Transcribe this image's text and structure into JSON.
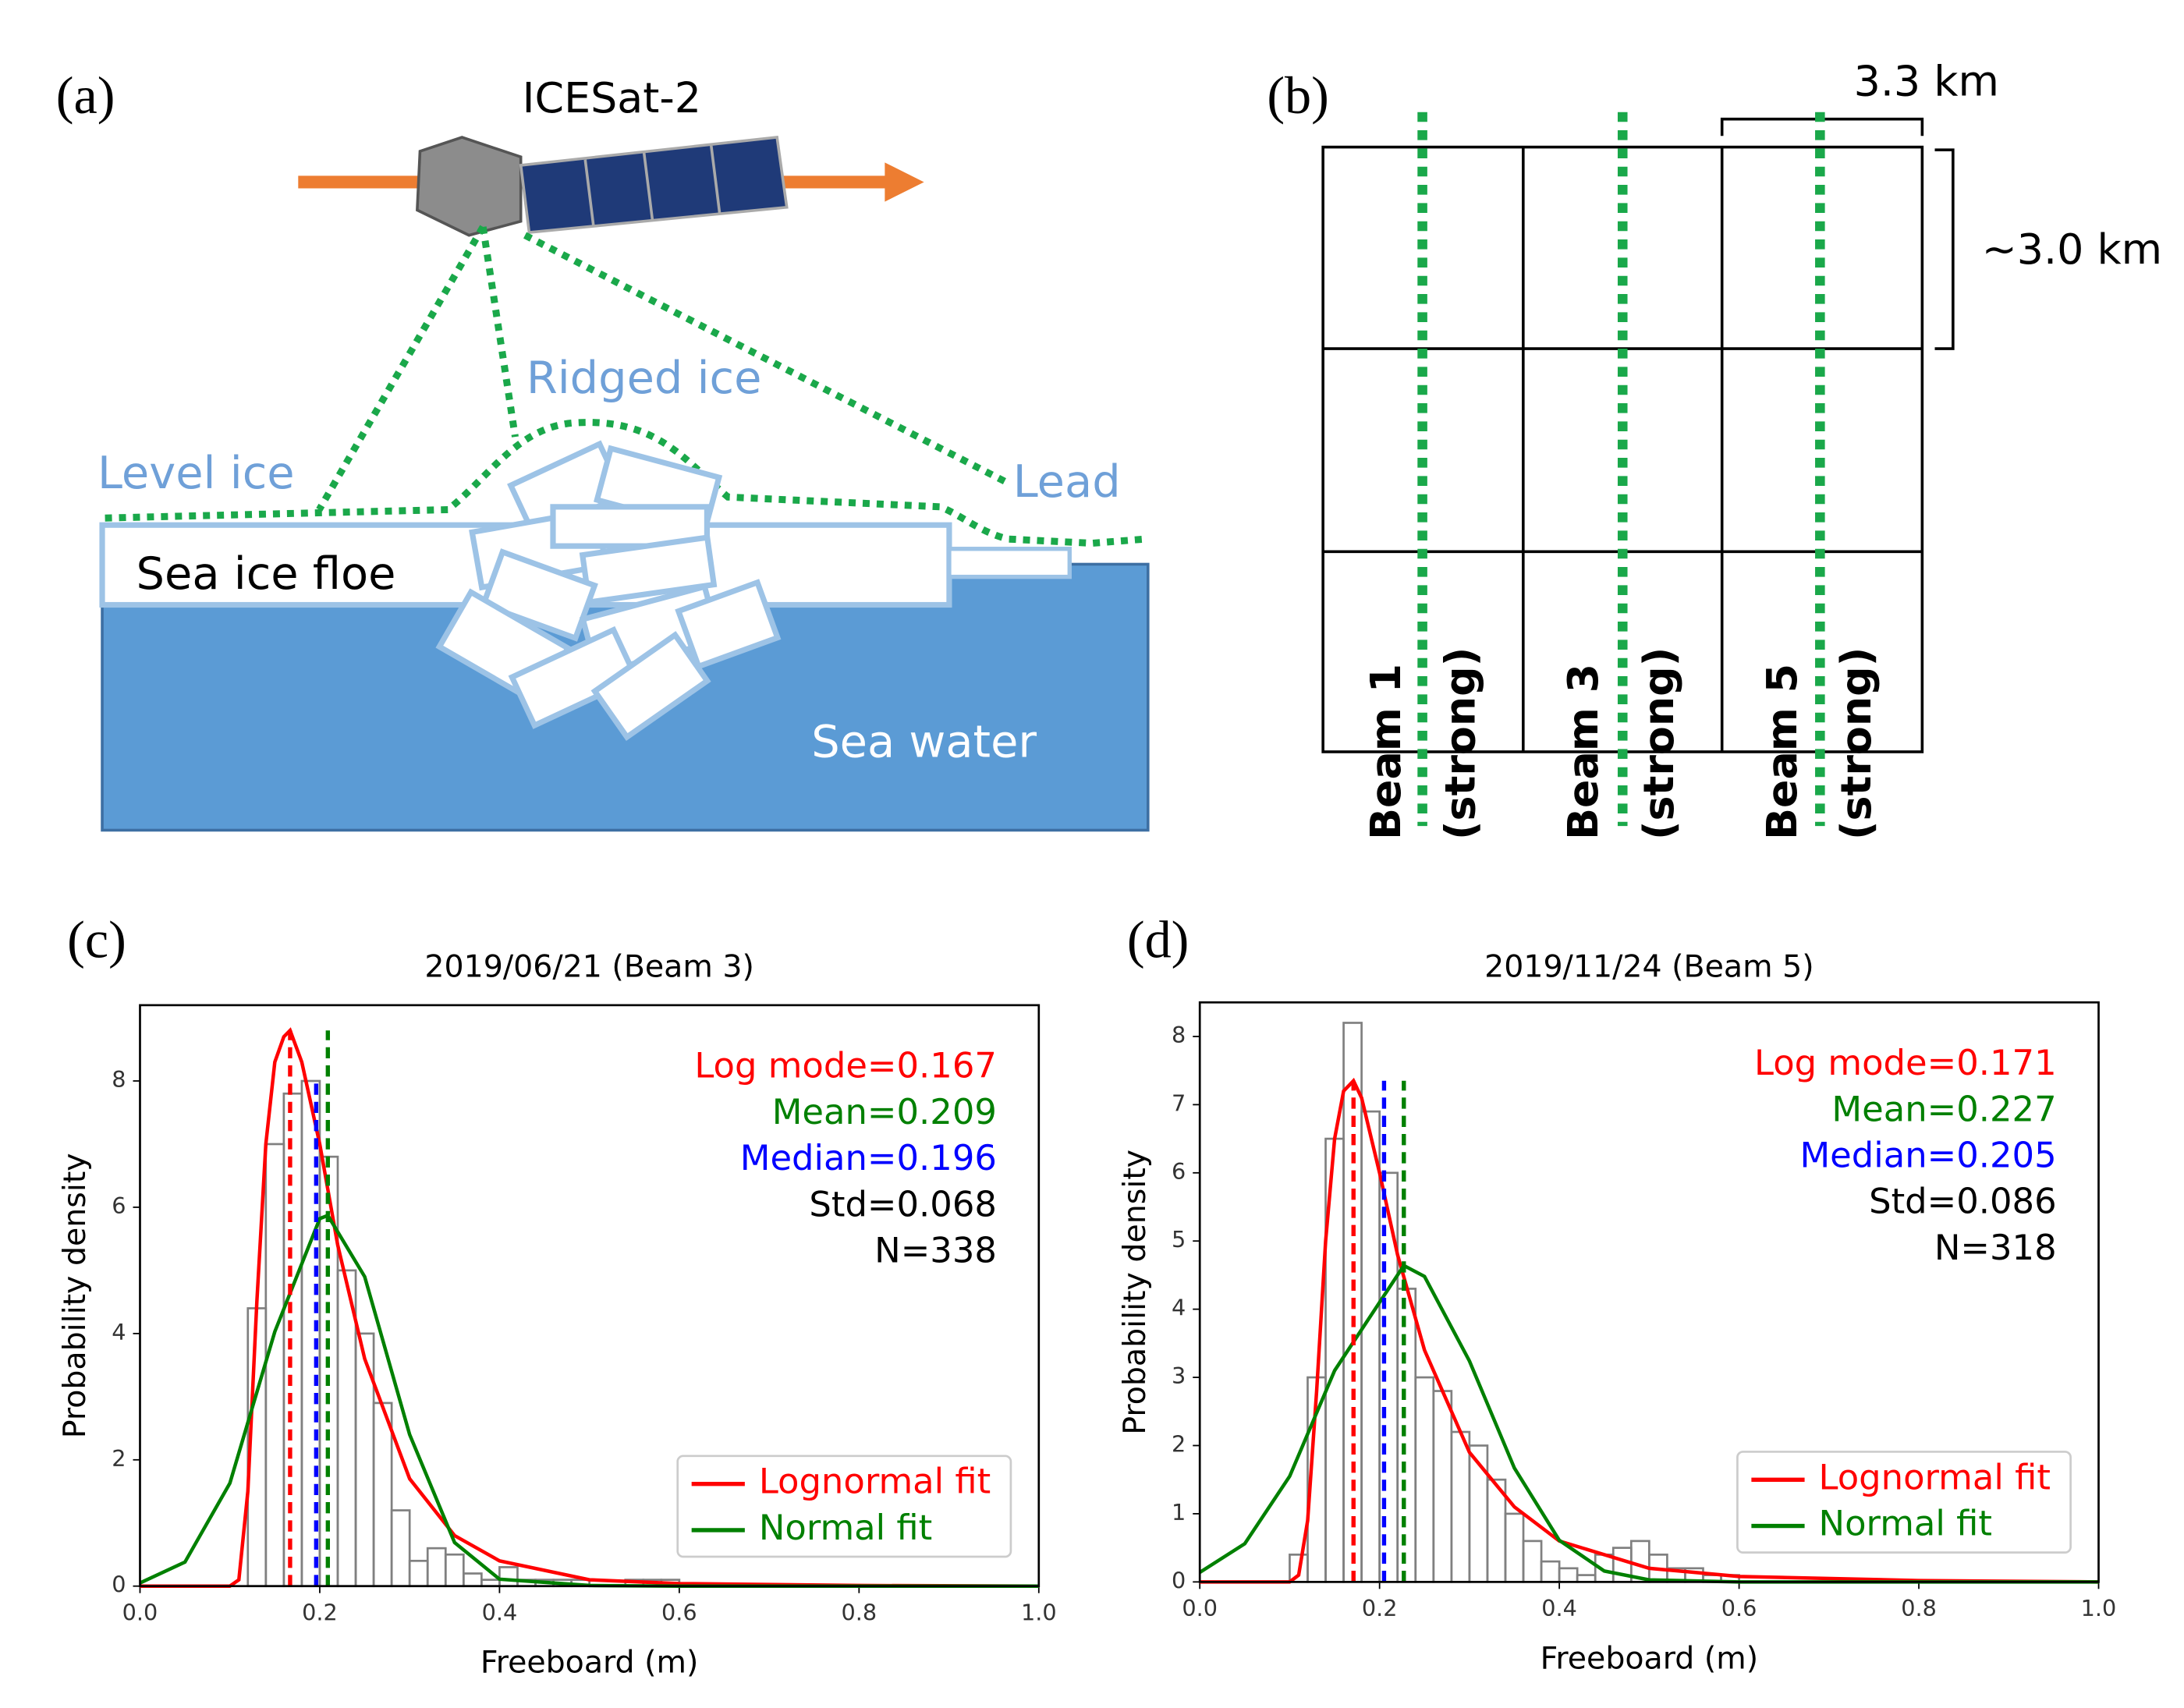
{
  "panel_a": {
    "label": "(a)",
    "satellite": "ICESat-2",
    "ridged": "Ridged ice",
    "level": "Level ice",
    "lead": "Lead",
    "floe": "Sea ice floe",
    "water": "Sea water"
  },
  "panel_b": {
    "label": "(b)",
    "width": "3.3 km",
    "height": "~3.0 km",
    "beams": [
      {
        "name": "Beam 1",
        "kind": "(strong)"
      },
      {
        "name": "Beam 3",
        "kind": "(strong)"
      },
      {
        "name": "Beam 5",
        "kind": "(strong)"
      }
    ]
  },
  "chart_data": [
    {
      "type": "histogram",
      "panel_label": "(c)",
      "title": "2019/06/21 (Beam 3)",
      "xlabel": "Freeboard (m)",
      "ylabel": "Probability density",
      "xlim": [
        0,
        1
      ],
      "ylim": [
        0,
        9.2
      ],
      "xticks": [
        {
          "value": 0,
          "label": "0.0"
        },
        {
          "value": 0.2,
          "label": "0.2"
        },
        {
          "value": 0.4,
          "label": "0.4"
        },
        {
          "value": 0.6,
          "label": "0.6"
        },
        {
          "value": 0.8,
          "label": "0.8"
        },
        {
          "value": 1,
          "label": "1.0"
        }
      ],
      "yticks": [
        0,
        2,
        4,
        6,
        8
      ],
      "histogram": {
        "color": "#808080",
        "bins": [
          0.1,
          0.12,
          0.14,
          0.16,
          0.18,
          0.2,
          0.22,
          0.24,
          0.26,
          0.28,
          0.3,
          0.32,
          0.34,
          0.36,
          0.38,
          0.4,
          0.42,
          0.44,
          0.46,
          0.48,
          0.5,
          0.52,
          0.54,
          0.56,
          0.58,
          0.6
        ],
        "values": [
          0,
          4.4,
          7.0,
          7.8,
          8.0,
          6.8,
          5.0,
          4.0,
          2.9,
          1.2,
          0.4,
          0.6,
          0.5,
          0.2,
          0.1,
          0.3,
          0.1,
          0.1,
          0.1,
          0.1,
          0,
          0,
          0.1,
          0.1,
          0.1
        ]
      },
      "series": [
        {
          "name": "Lognormal fit",
          "color": "#ff0000",
          "x": [
            0,
            0.1,
            0.11,
            0.12,
            0.13,
            0.14,
            0.15,
            0.16,
            0.167,
            0.18,
            0.2,
            0.22,
            0.25,
            0.3,
            0.35,
            0.4,
            0.5,
            0.6,
            0.8,
            1.0
          ],
          "values": [
            0,
            0,
            0.1,
            1.5,
            4.5,
            7.0,
            8.3,
            8.7,
            8.8,
            8.3,
            7.0,
            5.4,
            3.6,
            1.7,
            0.8,
            0.4,
            0.1,
            0.04,
            0.01,
            0
          ]
        },
        {
          "name": "Normal fit",
          "color": "#008000",
          "x": [
            0,
            0.05,
            0.1,
            0.15,
            0.2,
            0.209,
            0.25,
            0.3,
            0.35,
            0.4,
            0.5,
            0.6,
            1.0
          ],
          "values": [
            0.05,
            0.38,
            1.63,
            4.03,
            5.82,
            5.87,
            4.9,
            2.4,
            0.69,
            0.11,
            0.01,
            0,
            0
          ]
        }
      ],
      "vlines": [
        {
          "x": 0.167,
          "top": 8.8,
          "color": "#ff0000"
        },
        {
          "x": 0.196,
          "top": 8.0,
          "color": "#0000ff"
        },
        {
          "x": 0.209,
          "top": 8.8,
          "color": "#008000"
        }
      ],
      "annotations": [
        {
          "text": "Log mode=0.167",
          "color": "#ff0000"
        },
        {
          "text": "Mean=0.209",
          "color": "#008000"
        },
        {
          "text": "Median=0.196",
          "color": "#0000ff"
        },
        {
          "text": "Std=0.068",
          "color": "#000000"
        },
        {
          "text": "N=338",
          "color": "#000000"
        }
      ],
      "legend": "lower right"
    },
    {
      "type": "histogram",
      "panel_label": "(d)",
      "title": "2019/11/24 (Beam 5)",
      "xlabel": "Freeboard (m)",
      "ylabel": "Probability density",
      "xlim": [
        0,
        1
      ],
      "ylim": [
        0,
        8.5
      ],
      "xticks": [
        {
          "value": 0,
          "label": "0.0"
        },
        {
          "value": 0.2,
          "label": "0.2"
        },
        {
          "value": 0.4,
          "label": "0.4"
        },
        {
          "value": 0.6,
          "label": "0.6"
        },
        {
          "value": 0.8,
          "label": "0.8"
        },
        {
          "value": 1,
          "label": "1.0"
        }
      ],
      "yticks": [
        0,
        1,
        2,
        3,
        4,
        5,
        6,
        7,
        8
      ],
      "histogram": {
        "color": "#808080",
        "bins": [
          0.1,
          0.12,
          0.14,
          0.16,
          0.18,
          0.2,
          0.22,
          0.24,
          0.26,
          0.28,
          0.3,
          0.32,
          0.34,
          0.36,
          0.38,
          0.4,
          0.42,
          0.44,
          0.46,
          0.48,
          0.5,
          0.52,
          0.54,
          0.56,
          0.58,
          0.6
        ],
        "values": [
          0.4,
          3.0,
          6.5,
          8.2,
          6.9,
          6.0,
          4.3,
          3.0,
          2.8,
          2.2,
          2.0,
          1.5,
          1.0,
          0.6,
          0.3,
          0.2,
          0.1,
          0.4,
          0.5,
          0.6,
          0.4,
          0.2,
          0.2,
          0.1,
          0.1
        ]
      },
      "series": [
        {
          "name": "Lognormal fit",
          "color": "#ff0000",
          "x": [
            0,
            0.1,
            0.11,
            0.12,
            0.13,
            0.14,
            0.15,
            0.16,
            0.171,
            0.18,
            0.2,
            0.22,
            0.25,
            0.3,
            0.35,
            0.4,
            0.5,
            0.6,
            0.8,
            1.0
          ],
          "values": [
            0,
            0,
            0.1,
            0.9,
            2.8,
            5.0,
            6.5,
            7.2,
            7.35,
            7.1,
            6.0,
            4.8,
            3.4,
            1.9,
            1.1,
            0.6,
            0.2,
            0.08,
            0.02,
            0
          ]
        },
        {
          "name": "Normal fit",
          "color": "#008000",
          "x": [
            0,
            0.05,
            0.1,
            0.15,
            0.227,
            0.25,
            0.3,
            0.35,
            0.4,
            0.45,
            0.5,
            0.6,
            1.0
          ],
          "values": [
            0.14,
            0.56,
            1.55,
            3.1,
            4.64,
            4.48,
            3.24,
            1.67,
            0.61,
            0.16,
            0.03,
            0,
            0
          ]
        }
      ],
      "vlines": [
        {
          "x": 0.171,
          "top": 7.35,
          "color": "#ff0000"
        },
        {
          "x": 0.205,
          "top": 7.35,
          "color": "#0000ff"
        },
        {
          "x": 0.227,
          "top": 7.35,
          "color": "#008000"
        }
      ],
      "annotations": [
        {
          "text": "Log mode=0.171",
          "color": "#ff0000"
        },
        {
          "text": "Mean=0.227",
          "color": "#008000"
        },
        {
          "text": "Median=0.205",
          "color": "#0000ff"
        },
        {
          "text": "Std=0.086",
          "color": "#000000"
        },
        {
          "text": "N=318",
          "color": "#000000"
        }
      ],
      "legend": "lower right"
    }
  ]
}
